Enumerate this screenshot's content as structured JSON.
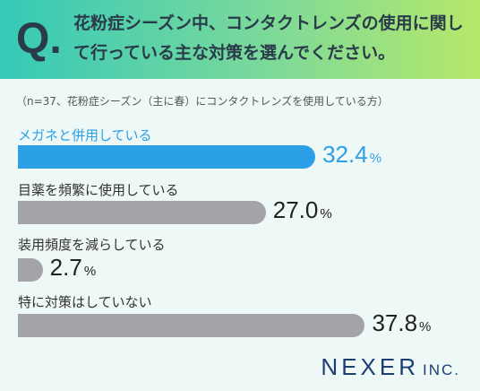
{
  "header": {
    "q_mark": "Q.",
    "question": "花粉症シーズン中、コンタクトレンズの使用に関して行っている主な対策を選んでください。"
  },
  "note": "（n=37、花粉症シーズン（主に春）にコンタクトレンズを使用している方）",
  "chart_data": {
    "type": "bar",
    "orientation": "horizontal",
    "categories": [
      "メガネと併用している",
      "目薬を頻繁に使用している",
      "装用頻度を減らしている",
      "特に対策はしていない"
    ],
    "values": [
      32.4,
      27.0,
      2.7,
      37.8
    ],
    "value_labels": [
      "32.4",
      "27.0",
      "2.7",
      "37.8"
    ],
    "unit": "%",
    "highlight_index": 0,
    "xlim": [
      0,
      40
    ],
    "grid": false,
    "colors": {
      "highlight": "#2ba0e6",
      "default": "#a4a4a8"
    }
  },
  "logo": {
    "main": "NEXER",
    "sub": "INC."
  }
}
